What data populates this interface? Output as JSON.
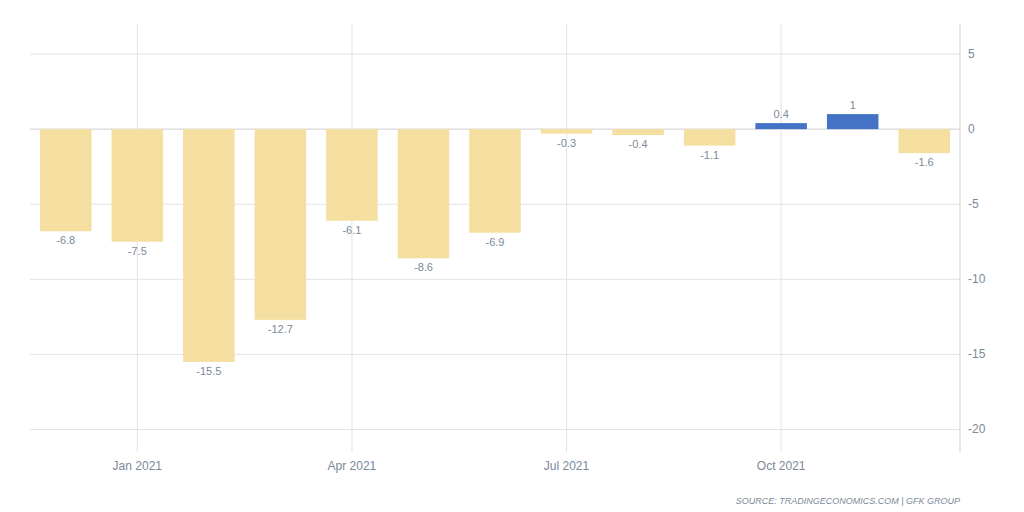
{
  "chart_data": {
    "type": "bar",
    "categories": [
      null,
      "Jan 2021",
      null,
      null,
      "Apr 2021",
      null,
      null,
      "Jul 2021",
      null,
      null,
      "Oct 2021",
      null,
      null
    ],
    "values": [
      -6.8,
      -7.5,
      -15.5,
      -12.7,
      -6.1,
      -8.6,
      -6.9,
      -0.3,
      -0.4,
      -1.1,
      0.4,
      1.0,
      -1.6
    ],
    "colors": [
      "#f5dfa0",
      "#f5dfa0",
      "#f5dfa0",
      "#f5dfa0",
      "#f5dfa0",
      "#f5dfa0",
      "#f5dfa0",
      "#f5dfa0",
      "#f5dfa0",
      "#f5dfa0",
      "#4472c4",
      "#4472c4",
      "#f5dfa0"
    ],
    "ylim": [
      -21.5,
      7.0
    ],
    "yticks": [
      5,
      0,
      -5,
      -10,
      -15,
      -20
    ],
    "grid": true,
    "data_labels": true,
    "annotations": [
      "SOURCE: TRADINGECONOMICS.COM | GFK GROUP"
    ]
  }
}
